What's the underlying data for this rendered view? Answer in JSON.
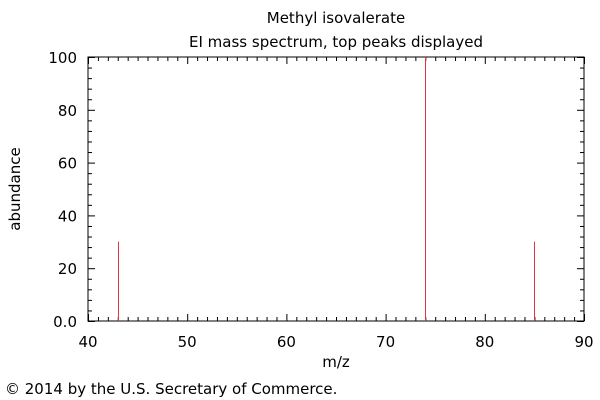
{
  "chart_data": {
    "type": "bar",
    "title": "Methyl isovalerate",
    "subtitle": "EI mass spectrum, top peaks displayed",
    "xlabel": "m/z",
    "ylabel": "abundance",
    "xlim": [
      40,
      90
    ],
    "ylim": [
      0,
      100
    ],
    "x_ticks": [
      "40",
      "50",
      "60",
      "70",
      "80",
      "90"
    ],
    "y_ticks": [
      "0.0",
      "20",
      "40",
      "60",
      "80",
      "100"
    ],
    "peaks": [
      {
        "mz": 43,
        "abundance": 30
      },
      {
        "mz": 74,
        "abundance": 100
      },
      {
        "mz": 85,
        "abundance": 30
      }
    ],
    "grid": false,
    "peak_color": "#e8323c",
    "axis_color": "#000000"
  },
  "footer": {
    "copyright": "© 2014 by the U.S. Secretary of Commerce."
  }
}
